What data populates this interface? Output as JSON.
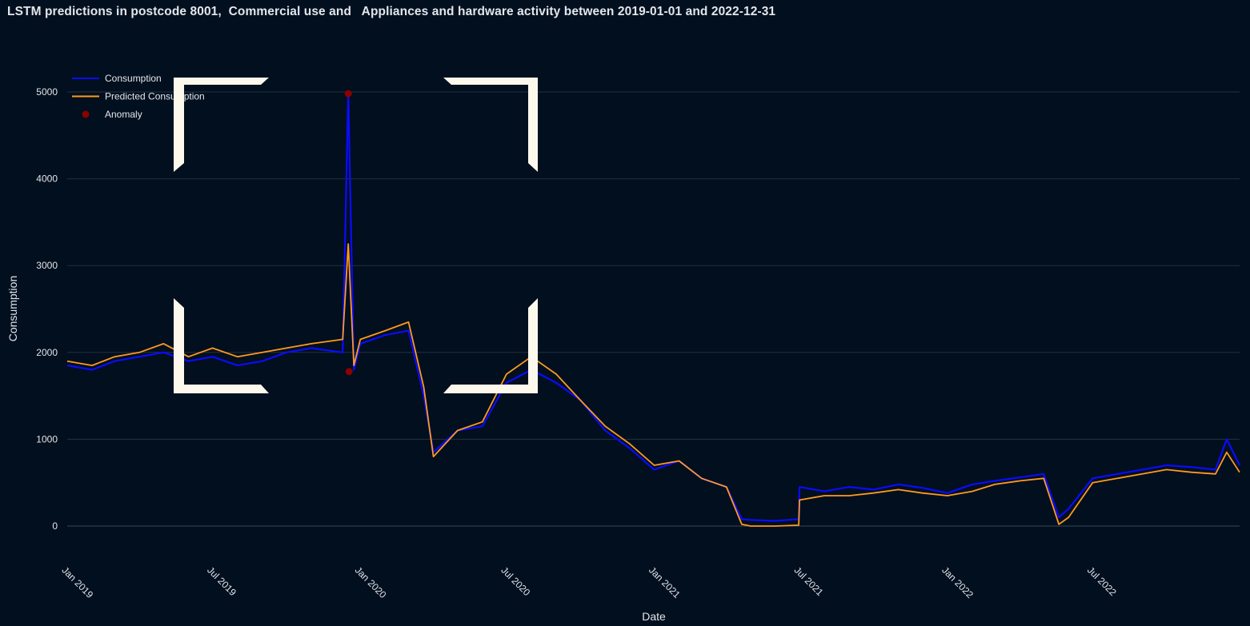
{
  "page_title": "LSTM predictions in postcode 8001,  Commercial use and   Appliances and hardware activity between 2019-01-01 and 2022-12-31",
  "colors": {
    "background": "#010f1f",
    "consumption": "#0b0bff",
    "predicted": "#ff9a1f",
    "anomaly": "#8b0000",
    "grid": "#25303f",
    "text": "#e3e6ea"
  },
  "chart_data": {
    "type": "line",
    "xlabel": "Date",
    "ylabel": "Consumption",
    "ylim": [
      0,
      5000
    ],
    "yticks": [
      0,
      1000,
      2000,
      3000,
      4000,
      5000
    ],
    "xlim": [
      "2019-01-01",
      "2022-12-31"
    ],
    "xticks": [
      {
        "date": "2019-01-01",
        "label": "Jan 2019"
      },
      {
        "date": "2019-07-01",
        "label": "Jul 2019"
      },
      {
        "date": "2020-01-01",
        "label": "Jan 2020"
      },
      {
        "date": "2020-07-01",
        "label": "Jul 2020"
      },
      {
        "date": "2021-01-01",
        "label": "Jan 2021"
      },
      {
        "date": "2021-07-01",
        "label": "Jul 2021"
      },
      {
        "date": "2022-01-01",
        "label": "Jan 2022"
      },
      {
        "date": "2022-07-01",
        "label": "Jul 2022"
      }
    ],
    "grid": true,
    "legend_position": "top-left",
    "series": [
      {
        "name": "Consumption",
        "type": "line",
        "color": "#0b0bff",
        "x": [
          "2019-01-01",
          "2019-02-01",
          "2019-03-01",
          "2019-04-01",
          "2019-05-01",
          "2019-06-01",
          "2019-07-01",
          "2019-08-01",
          "2019-09-01",
          "2019-10-01",
          "2019-11-01",
          "2019-12-10",
          "2019-12-17",
          "2019-12-24",
          "2020-01-01",
          "2020-02-01",
          "2020-03-01",
          "2020-03-20",
          "2020-04-01",
          "2020-05-01",
          "2020-06-01",
          "2020-07-01",
          "2020-08-01",
          "2020-09-01",
          "2020-10-01",
          "2020-11-01",
          "2020-12-01",
          "2021-01-01",
          "2021-02-01",
          "2021-03-01",
          "2021-04-01",
          "2021-04-20",
          "2021-05-01",
          "2021-06-01",
          "2021-06-30",
          "2021-07-01",
          "2021-08-01",
          "2021-09-01",
          "2021-10-01",
          "2021-11-01",
          "2021-12-01",
          "2022-01-01",
          "2022-02-01",
          "2022-03-01",
          "2022-04-01",
          "2022-05-01",
          "2022-05-20",
          "2022-06-01",
          "2022-07-01",
          "2022-08-01",
          "2022-09-01",
          "2022-10-01",
          "2022-11-01",
          "2022-12-01",
          "2022-12-15",
          "2022-12-31"
        ],
        "y": [
          1850,
          1800,
          1900,
          1950,
          2000,
          1900,
          1950,
          1850,
          1900,
          2000,
          2050,
          2000,
          5000,
          1800,
          2100,
          2200,
          2250,
          1500,
          850,
          1100,
          1150,
          1650,
          1800,
          1650,
          1450,
          1100,
          900,
          650,
          750,
          550,
          450,
          80,
          70,
          60,
          80,
          450,
          400,
          450,
          420,
          480,
          440,
          380,
          480,
          520,
          560,
          600,
          100,
          200,
          550,
          600,
          650,
          700,
          680,
          650,
          1000,
          700
        ]
      },
      {
        "name": "Predicted Consumption",
        "type": "line",
        "color": "#ff9a1f",
        "x": [
          "2019-01-01",
          "2019-02-01",
          "2019-03-01",
          "2019-04-01",
          "2019-05-01",
          "2019-06-01",
          "2019-07-01",
          "2019-08-01",
          "2019-09-01",
          "2019-10-01",
          "2019-11-01",
          "2019-12-10",
          "2019-12-17",
          "2019-12-24",
          "2020-01-01",
          "2020-02-01",
          "2020-03-01",
          "2020-03-20",
          "2020-04-01",
          "2020-05-01",
          "2020-06-01",
          "2020-07-01",
          "2020-08-01",
          "2020-09-01",
          "2020-10-01",
          "2020-11-01",
          "2020-12-01",
          "2021-01-01",
          "2021-02-01",
          "2021-03-01",
          "2021-04-01",
          "2021-04-20",
          "2021-05-01",
          "2021-06-01",
          "2021-06-30",
          "2021-07-01",
          "2021-08-01",
          "2021-09-01",
          "2021-10-01",
          "2021-11-01",
          "2021-12-01",
          "2022-01-01",
          "2022-02-01",
          "2022-03-01",
          "2022-04-01",
          "2022-05-01",
          "2022-05-20",
          "2022-06-01",
          "2022-07-01",
          "2022-08-01",
          "2022-09-01",
          "2022-10-01",
          "2022-11-01",
          "2022-12-01",
          "2022-12-15",
          "2022-12-31"
        ],
        "y": [
          1900,
          1850,
          1950,
          2000,
          2100,
          1950,
          2050,
          1950,
          2000,
          2050,
          2100,
          2150,
          3250,
          1850,
          2150,
          2250,
          2350,
          1600,
          800,
          1100,
          1200,
          1750,
          1950,
          1750,
          1450,
          1150,
          950,
          700,
          750,
          550,
          450,
          20,
          0,
          0,
          10,
          300,
          350,
          350,
          380,
          420,
          380,
          350,
          400,
          480,
          520,
          550,
          20,
          100,
          500,
          550,
          600,
          650,
          620,
          600,
          850,
          620
        ]
      },
      {
        "name": "Anomaly",
        "type": "scatter",
        "color": "#8b0000",
        "x": [
          "2019-12-17",
          "2019-12-18"
        ],
        "y": [
          4980,
          1780
        ]
      }
    ]
  }
}
